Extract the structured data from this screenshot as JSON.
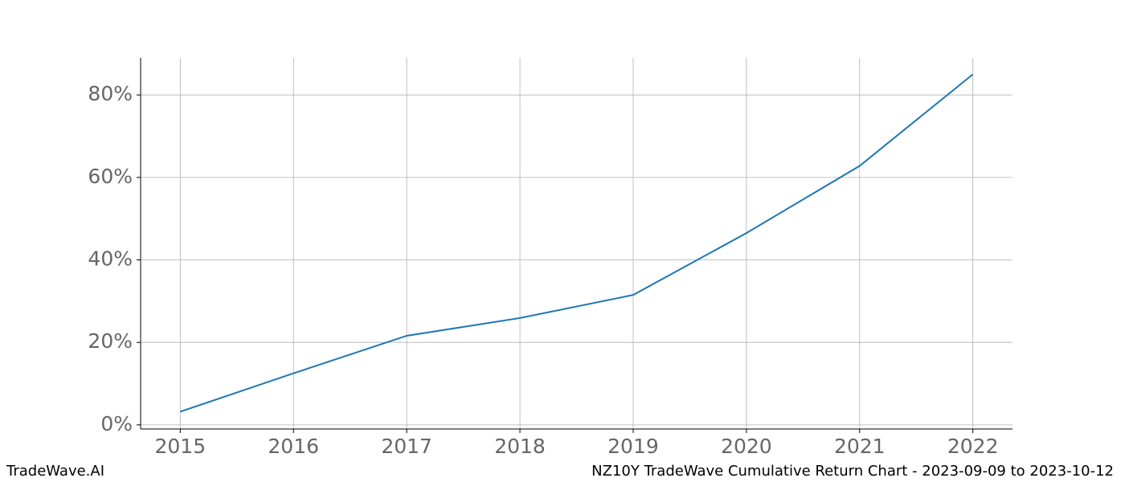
{
  "chart_data": {
    "type": "line",
    "x": [
      2015,
      2016,
      2017,
      2018,
      2019,
      2020,
      2021,
      2022
    ],
    "values": [
      3.2,
      12.5,
      21.6,
      25.9,
      31.5,
      46.5,
      62.8,
      85.0
    ],
    "color": "#1f77b4",
    "xlim": [
      2014.65,
      2022.35
    ],
    "xticks": [
      2015,
      2016,
      2017,
      2018,
      2019,
      2020,
      2021,
      2022
    ],
    "ylim": [
      -1,
      89
    ],
    "yticks": [
      {
        "value": 0,
        "label": "0%"
      },
      {
        "value": 20,
        "label": "20%"
      },
      {
        "value": 40,
        "label": "40%"
      },
      {
        "value": 60,
        "label": "60%"
      },
      {
        "value": 80,
        "label": "80%"
      }
    ],
    "grid": true
  },
  "footer": {
    "left": "TradeWave.AI",
    "right": "NZ10Y TradeWave Cumulative Return Chart - 2023-09-09 to 2023-10-12"
  }
}
